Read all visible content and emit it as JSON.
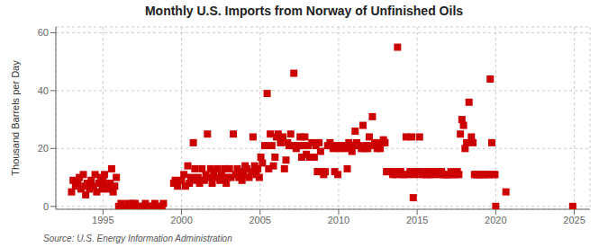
{
  "chart_data": {
    "type": "scatter",
    "title": "Monthly U.S. Imports from Norway of Unfinished Oils",
    "ylabel": "Thousand Barrels per Day",
    "annotations": [
      "Source: U.S. Energy Information Administration"
    ],
    "color": "#cc0000",
    "marker": "square",
    "grid": true,
    "xlim": [
      1992.0,
      2026.0
    ],
    "ylim": [
      -1,
      62
    ],
    "xticks": [
      1995,
      2000,
      2005,
      2010,
      2015,
      2020,
      2025
    ],
    "yticks": [
      0,
      20,
      40,
      60
    ],
    "x": [
      1993.0,
      1993.1,
      1993.25,
      1993.4,
      1993.5,
      1993.6,
      1993.75,
      1993.85,
      1993.9,
      1994.0,
      1994.15,
      1994.25,
      1994.4,
      1994.5,
      1994.6,
      1994.75,
      1994.85,
      1994.95,
      1995.0,
      1995.1,
      1995.2,
      1995.35,
      1995.45,
      1995.55,
      1995.65,
      1995.75,
      1995.85,
      1996.0,
      1996.15,
      1996.3,
      1996.45,
      1996.6,
      1996.75,
      1996.85,
      1996.95,
      1997.05,
      1997.15,
      1997.3,
      1997.5,
      1997.7,
      1997.85,
      1998.0,
      1998.15,
      1998.3,
      1998.45,
      1998.6,
      1998.75,
      1998.85,
      1999.5,
      1999.6,
      1999.75,
      2000.0,
      2000.15,
      2000.25,
      2000.4,
      2000.5,
      2000.6,
      2000.75,
      2000.85,
      2000.95,
      2001.05,
      2001.15,
      2001.3,
      2001.45,
      2001.55,
      2001.65,
      2001.75,
      2001.85,
      2001.95,
      2002.05,
      2002.15,
      2002.3,
      2002.45,
      2002.55,
      2002.65,
      2002.75,
      2002.85,
      2002.95,
      2003.05,
      2003.15,
      2003.3,
      2003.45,
      2003.55,
      2003.65,
      2003.75,
      2003.85,
      2003.95,
      2004.05,
      2004.15,
      2004.3,
      2004.45,
      2004.55,
      2004.65,
      2004.75,
      2004.85,
      2004.95,
      2005.05,
      2005.15,
      2005.3,
      2005.45,
      2005.55,
      2005.65,
      2005.75,
      2005.85,
      2005.95,
      2006.05,
      2006.15,
      2006.3,
      2006.45,
      2006.55,
      2006.65,
      2006.75,
      2006.85,
      2006.95,
      2007.05,
      2007.15,
      2007.3,
      2007.45,
      2007.55,
      2007.65,
      2007.75,
      2007.85,
      2007.95,
      2008.05,
      2008.15,
      2008.3,
      2008.45,
      2008.55,
      2008.65,
      2008.75,
      2008.85,
      2008.95,
      2009.05,
      2009.15,
      2009.3,
      2009.45,
      2009.55,
      2009.65,
      2009.75,
      2009.85,
      2009.95,
      2010.05,
      2010.15,
      2010.3,
      2010.45,
      2010.55,
      2010.65,
      2010.75,
      2010.85,
      2010.95,
      2011.05,
      2011.15,
      2011.3,
      2011.45,
      2011.55,
      2011.65,
      2011.75,
      2011.85,
      2011.95,
      2012.05,
      2012.15,
      2012.3,
      2012.45,
      2012.55,
      2012.65,
      2012.75,
      2012.85,
      2012.95,
      2013.05,
      2013.15,
      2013.3,
      2013.45,
      2013.55,
      2013.65,
      2013.75,
      2013.85,
      2013.95,
      2014.05,
      2014.15,
      2014.3,
      2014.45,
      2014.55,
      2014.65,
      2014.75,
      2014.85,
      2014.95,
      2015.05,
      2015.15,
      2015.3,
      2015.45,
      2015.55,
      2015.65,
      2015.75,
      2015.85,
      2015.95,
      2016.05,
      2016.15,
      2016.3,
      2016.45,
      2016.55,
      2016.65,
      2016.75,
      2016.85,
      2016.95,
      2017.05,
      2017.15,
      2017.3,
      2017.45,
      2017.55,
      2017.65,
      2017.75,
      2017.85,
      2017.95,
      2018.05,
      2018.15,
      2018.3,
      2018.45,
      2018.55,
      2018.65,
      2018.75,
      2018.85,
      2018.95,
      2019.05,
      2019.15,
      2019.3,
      2019.45,
      2019.55,
      2019.65,
      2019.75,
      2019.85,
      2019.95,
      2020.0,
      2020.65,
      2024.9
    ],
    "values": [
      5,
      9,
      7,
      8,
      10,
      6,
      11,
      7,
      4,
      8,
      6,
      9,
      7,
      11,
      5,
      8,
      10,
      6,
      9,
      11,
      7,
      6,
      8,
      13,
      5,
      7,
      10,
      0,
      1,
      0,
      0,
      1,
      0,
      1,
      0,
      1,
      0,
      0,
      0,
      1,
      0,
      0,
      0,
      1,
      0,
      0,
      0,
      1,
      8,
      9,
      7,
      9,
      11,
      7,
      14,
      8,
      10,
      22,
      13,
      9,
      10,
      8,
      13,
      9,
      11,
      25,
      10,
      13,
      8,
      12,
      10,
      13,
      9,
      11,
      10,
      13,
      8,
      10,
      13,
      10,
      25,
      11,
      13,
      10,
      12,
      9,
      11,
      14,
      13,
      10,
      12,
      24,
      14,
      11,
      13,
      10,
      17,
      15,
      21,
      39,
      13,
      25,
      21,
      14,
      17,
      24,
      25,
      22,
      24,
      13,
      16,
      22,
      21,
      25,
      21,
      46,
      20,
      21,
      24,
      17,
      21,
      24,
      18,
      21,
      17,
      22,
      17,
      21,
      12,
      22,
      19,
      12,
      11,
      12,
      21,
      22,
      21,
      20,
      12,
      21,
      11,
      20,
      21,
      21,
      20,
      13,
      22,
      21,
      19,
      21,
      26,
      22,
      21,
      20,
      28,
      20,
      21,
      20,
      24,
      21,
      31,
      22,
      20,
      21,
      20,
      22,
      23,
      22,
      12,
      12,
      12,
      11,
      12,
      11,
      55,
      12,
      12,
      11,
      11,
      24,
      11,
      12,
      24,
      3,
      11,
      12,
      12,
      24,
      11,
      12,
      11,
      11,
      12,
      11,
      12,
      11,
      12,
      12,
      11,
      12,
      11,
      11,
      11,
      11,
      11,
      12,
      11,
      11,
      12,
      11,
      25,
      30,
      28,
      20,
      22,
      36,
      24,
      22,
      11,
      11,
      11,
      11,
      11,
      11,
      11,
      11,
      11,
      44,
      22,
      11,
      11,
      0,
      5,
      0
    ]
  }
}
